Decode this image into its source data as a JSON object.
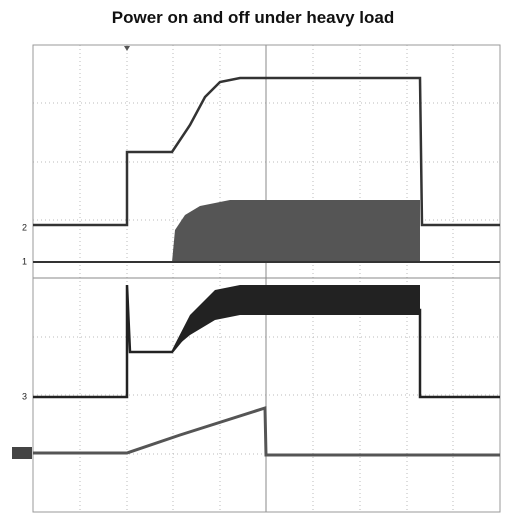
{
  "title": "Power on and off under heavy load",
  "channels": [
    {
      "label": "2"
    },
    {
      "label": "1"
    },
    {
      "label": "3"
    }
  ]
}
